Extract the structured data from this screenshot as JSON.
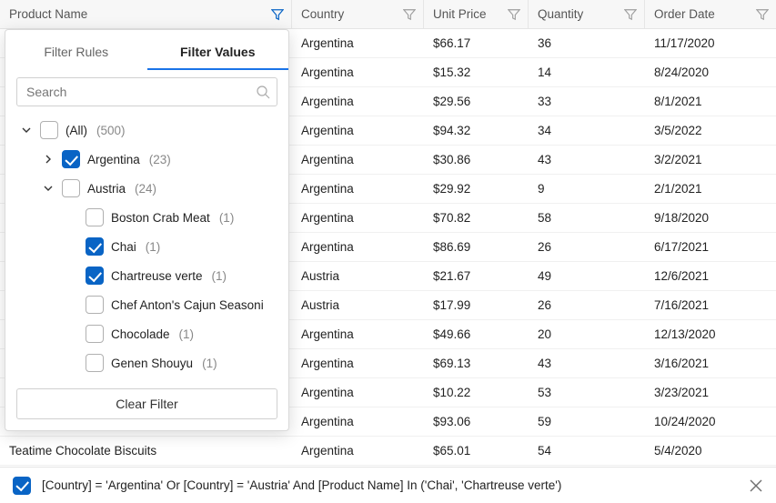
{
  "columns": [
    {
      "key": "product",
      "label": "Product Name",
      "filter_active": true
    },
    {
      "key": "country",
      "label": "Country",
      "filter_active": false
    },
    {
      "key": "price",
      "label": "Unit Price",
      "filter_active": false
    },
    {
      "key": "qty",
      "label": "Quantity",
      "filter_active": false
    },
    {
      "key": "date",
      "label": "Order Date",
      "filter_active": false
    }
  ],
  "rows": [
    {
      "product": "",
      "country": "Argentina",
      "price": "$66.17",
      "qty": "36",
      "date": "11/17/2020"
    },
    {
      "product": "",
      "country": "Argentina",
      "price": "$15.32",
      "qty": "14",
      "date": "8/24/2020"
    },
    {
      "product": "",
      "country": "Argentina",
      "price": "$29.56",
      "qty": "33",
      "date": "8/1/2021"
    },
    {
      "product": "",
      "country": "Argentina",
      "price": "$94.32",
      "qty": "34",
      "date": "3/5/2022"
    },
    {
      "product": "",
      "country": "Argentina",
      "price": "$30.86",
      "qty": "43",
      "date": "3/2/2021"
    },
    {
      "product": "",
      "country": "Argentina",
      "price": "$29.92",
      "qty": "9",
      "date": "2/1/2021"
    },
    {
      "product": "",
      "country": "Argentina",
      "price": "$70.82",
      "qty": "58",
      "date": "9/18/2020"
    },
    {
      "product": "",
      "country": "Argentina",
      "price": "$86.69",
      "qty": "26",
      "date": "6/17/2021"
    },
    {
      "product": "",
      "country": "Austria",
      "price": "$21.67",
      "qty": "49",
      "date": "12/6/2021"
    },
    {
      "product": "",
      "country": "Austria",
      "price": "$17.99",
      "qty": "26",
      "date": "7/16/2021"
    },
    {
      "product": "",
      "country": "Argentina",
      "price": "$49.66",
      "qty": "20",
      "date": "12/13/2020"
    },
    {
      "product": "",
      "country": "Argentina",
      "price": "$69.13",
      "qty": "43",
      "date": "3/16/2021"
    },
    {
      "product": "",
      "country": "Argentina",
      "price": "$10.22",
      "qty": "53",
      "date": "3/23/2021"
    },
    {
      "product": "",
      "country": "Argentina",
      "price": "$93.06",
      "qty": "59",
      "date": "10/24/2020"
    },
    {
      "product": "Teatime Chocolate Biscuits",
      "country": "Argentina",
      "price": "$65.01",
      "qty": "54",
      "date": "5/4/2020"
    }
  ],
  "dropdown": {
    "tabs": {
      "rules": "Filter Rules",
      "values": "Filter Values"
    },
    "active_tab": "values",
    "search_placeholder": "Search",
    "tree": [
      {
        "level": 1,
        "expander": "down",
        "checked": false,
        "label": "(All)",
        "count": "(500)"
      },
      {
        "level": 2,
        "expander": "right",
        "checked": true,
        "label": "Argentina",
        "count": "(23)"
      },
      {
        "level": 2,
        "expander": "down",
        "checked": false,
        "label": "Austria",
        "count": "(24)"
      },
      {
        "level": 3,
        "expander": "",
        "checked": false,
        "label": "Boston Crab Meat",
        "count": "(1)"
      },
      {
        "level": 3,
        "expander": "",
        "checked": true,
        "label": "Chai",
        "count": "(1)"
      },
      {
        "level": 3,
        "expander": "",
        "checked": true,
        "label": "Chartreuse verte",
        "count": "(1)"
      },
      {
        "level": 3,
        "expander": "",
        "checked": false,
        "label": "Chef Anton's Cajun Seasoni",
        "count": ""
      },
      {
        "level": 3,
        "expander": "",
        "checked": false,
        "label": "Chocolade",
        "count": "(1)"
      },
      {
        "level": 3,
        "expander": "",
        "checked": false,
        "label": "Genen Shouyu",
        "count": "(1)"
      }
    ],
    "clear_label": "Clear Filter"
  },
  "footer": {
    "checked": true,
    "expression": "[Country] = 'Argentina' Or [Country] = 'Austria' And [Product Name] In ('Chai', 'Chartreuse verte')"
  },
  "colors": {
    "accent": "#0964c5",
    "tab_underline": "#1a73e8",
    "header_bg": "#f7f7f7",
    "border": "#e5e5e5"
  }
}
